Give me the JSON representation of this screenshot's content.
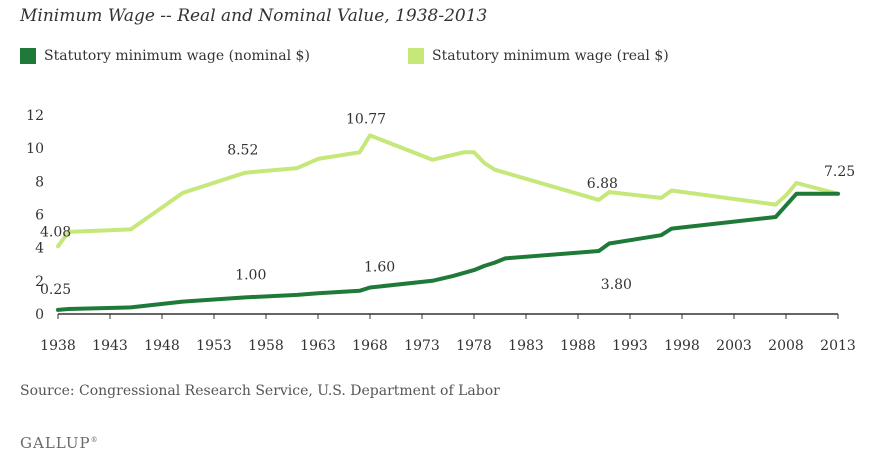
{
  "chart_data": {
    "type": "line",
    "title": "Minimum Wage -- Real and Nominal Value, 1938-2013",
    "xlabel": "",
    "ylabel": "",
    "xlim": [
      1938,
      2013
    ],
    "ylim": [
      0,
      12
    ],
    "x_ticks": [
      "1938",
      "1943",
      "1948",
      "1953",
      "1958",
      "1963",
      "1968",
      "1973",
      "1978",
      "1983",
      "1988",
      "1993",
      "1998",
      "2003",
      "2008",
      "2013"
    ],
    "y_ticks": [
      "0",
      "2",
      "4",
      "6",
      "8",
      "10",
      "12"
    ],
    "grid": "none",
    "legend_position": "top-left",
    "series": [
      {
        "name": "Statutory minimum wage (nominal $)",
        "color": "#1f7a3a",
        "points": [
          [
            1938,
            0.25
          ],
          [
            1939,
            0.3
          ],
          [
            1945,
            0.4
          ],
          [
            1950,
            0.75
          ],
          [
            1956,
            1.0
          ],
          [
            1961,
            1.15
          ],
          [
            1963,
            1.25
          ],
          [
            1967,
            1.4
          ],
          [
            1968,
            1.6
          ],
          [
            1974,
            2.0
          ],
          [
            1976,
            2.3
          ],
          [
            1978,
            2.65
          ],
          [
            1979,
            2.9
          ],
          [
            1980,
            3.1
          ],
          [
            1981,
            3.35
          ],
          [
            1990,
            3.8
          ],
          [
            1991,
            4.25
          ],
          [
            1996,
            4.75
          ],
          [
            1997,
            5.15
          ],
          [
            2007,
            5.85
          ],
          [
            2008,
            6.55
          ],
          [
            2009,
            7.25
          ],
          [
            2013,
            7.25
          ]
        ]
      },
      {
        "name": "Statutory minimum wage (real $)",
        "color": "#c6e77a",
        "points": [
          [
            1938,
            4.08
          ],
          [
            1939,
            4.95
          ],
          [
            1945,
            5.1
          ],
          [
            1950,
            7.3
          ],
          [
            1956,
            8.52
          ],
          [
            1961,
            8.8
          ],
          [
            1963,
            9.35
          ],
          [
            1967,
            9.75
          ],
          [
            1968,
            10.77
          ],
          [
            1974,
            9.3
          ],
          [
            1977,
            9.75
          ],
          [
            1978,
            9.75
          ],
          [
            1979,
            9.1
          ],
          [
            1980,
            8.7
          ],
          [
            1990,
            6.88
          ],
          [
            1991,
            7.35
          ],
          [
            1996,
            7.0
          ],
          [
            1997,
            7.45
          ],
          [
            2007,
            6.6
          ],
          [
            2008,
            7.15
          ],
          [
            2009,
            7.9
          ],
          [
            2013,
            7.25
          ]
        ]
      }
    ],
    "annotations": [
      {
        "text": "0.25",
        "series": 0,
        "x": 1938,
        "y": 0.25
      },
      {
        "text": "1.00",
        "series": 0,
        "x": 1956,
        "y": 1.0
      },
      {
        "text": "1.60",
        "series": 0,
        "x": 1968,
        "y": 1.6
      },
      {
        "text": "3.80",
        "series": 0,
        "x": 1990,
        "y": 3.8
      },
      {
        "text": "4.08",
        "series": 1,
        "x": 1938,
        "y": 4.08
      },
      {
        "text": "8.52",
        "series": 1,
        "x": 1956,
        "y": 8.52
      },
      {
        "text": "10.77",
        "series": 1,
        "x": 1968,
        "y": 10.77
      },
      {
        "text": "6.88",
        "series": 1,
        "x": 1990,
        "y": 6.88
      },
      {
        "text": "7.25",
        "series": 1,
        "x": 2013,
        "y": 7.25
      }
    ]
  },
  "footer": {
    "source": "Source: Congressional Research Service, U.S. Department of Labor",
    "logo": "GALLUP",
    "logo_mark": "®"
  }
}
